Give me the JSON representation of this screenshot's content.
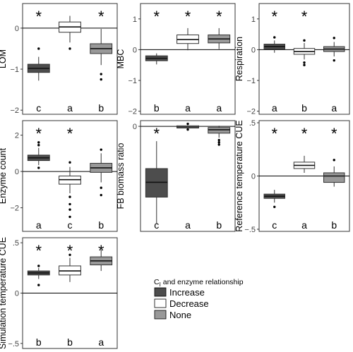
{
  "chart_data": [
    {
      "type": "boxplot",
      "ylabel": "LOM",
      "ylim": [
        -2.1,
        0.6
      ],
      "ticks": [
        -2,
        -1,
        0
      ],
      "tick_labels": [
        "−2",
        "−1",
        "0"
      ],
      "stars": [
        "*",
        "",
        "*"
      ],
      "letters": [
        "c",
        "a",
        "b"
      ],
      "boxes": [
        {
          "group": "Increase",
          "q1": -1.08,
          "median": -0.98,
          "q3": -0.88,
          "wlo": -1.28,
          "whi": -0.7,
          "outliers": [
            -0.5
          ]
        },
        {
          "group": "Decrease",
          "q1": -0.1,
          "median": 0.03,
          "q3": 0.15,
          "wlo": -0.35,
          "whi": 0.3,
          "outliers": [
            -0.5
          ]
        },
        {
          "group": "None",
          "q1": -0.62,
          "median": -0.5,
          "q3": -0.38,
          "wlo": -0.9,
          "whi": -0.02,
          "outliers": [
            -1.12,
            -1.25
          ]
        }
      ]
    },
    {
      "type": "boxplot",
      "ylabel": "MBC",
      "ylim": [
        -2.1,
        1.5
      ],
      "ticks": [
        -2,
        -1,
        0,
        1
      ],
      "tick_labels": [
        "−2",
        "−1",
        "0",
        "1"
      ],
      "stars": [
        "*",
        "*",
        "*"
      ],
      "letters": [
        "b",
        "a",
        "a"
      ],
      "boxes": [
        {
          "group": "Increase",
          "q1": -0.36,
          "median": -0.28,
          "q3": -0.2,
          "wlo": -0.48,
          "whi": -0.12,
          "outliers": []
        },
        {
          "group": "Decrease",
          "q1": 0.2,
          "median": 0.33,
          "q3": 0.48,
          "wlo": -0.02,
          "whi": 0.7,
          "outliers": []
        },
        {
          "group": "None",
          "q1": 0.22,
          "median": 0.35,
          "q3": 0.48,
          "wlo": 0.02,
          "whi": 0.7,
          "outliers": []
        }
      ]
    },
    {
      "type": "boxplot",
      "ylabel": "Respiration",
      "ylim": [
        -2.1,
        1.5
      ],
      "ticks": [
        -2,
        -1,
        0,
        1
      ],
      "tick_labels": [
        "−2",
        "−1",
        "0",
        "1"
      ],
      "stars": [
        "*",
        "*",
        ""
      ],
      "letters": [
        "a",
        "b",
        "a"
      ],
      "boxes": [
        {
          "group": "Increase",
          "q1": 0.02,
          "median": 0.1,
          "q3": 0.18,
          "wlo": -0.1,
          "whi": 0.3,
          "outliers": [
            0.4
          ]
        },
        {
          "group": "Decrease",
          "q1": -0.15,
          "median": -0.06,
          "q3": 0.04,
          "wlo": -0.32,
          "whi": 0.22,
          "outliers": [
            0.3,
            -0.42,
            -0.5
          ]
        },
        {
          "group": "None",
          "q1": -0.06,
          "median": 0.02,
          "q3": 0.1,
          "wlo": -0.22,
          "whi": 0.25,
          "outliers": [
            0.38,
            -0.35
          ]
        }
      ]
    },
    {
      "type": "boxplot",
      "ylabel": "Enzyme count",
      "ylim": [
        -3.3,
        2.8
      ],
      "ticks": [
        -2,
        0,
        2
      ],
      "tick_labels": [
        "−2",
        "0",
        "2"
      ],
      "stars": [
        "*",
        "*",
        ""
      ],
      "letters": [
        "a",
        "c",
        "b"
      ],
      "boxes": [
        {
          "group": "Increase",
          "q1": 0.6,
          "median": 0.75,
          "q3": 0.9,
          "wlo": 0.35,
          "whi": 1.3,
          "outliers": [
            1.45,
            1.6,
            0.2
          ]
        },
        {
          "group": "Decrease",
          "q1": -0.7,
          "median": -0.45,
          "q3": -0.25,
          "wlo": -1.2,
          "whi": 0.25,
          "outliers": [
            0.5,
            -1.4,
            -1.8,
            -2.1,
            -2.5
          ]
        },
        {
          "group": "None",
          "q1": -0.05,
          "median": 0.2,
          "q3": 0.45,
          "wlo": -0.6,
          "whi": 1.0,
          "outliers": [
            1.2,
            -0.9,
            -1.3
          ]
        }
      ]
    },
    {
      "type": "boxplot",
      "ylabel": "FB biomass ratio",
      "ylim": [
        -9.2,
        0.5
      ],
      "ticks": [
        0
      ],
      "tick_labels": [
        "0"
      ],
      "stars": [
        "*",
        "",
        ""
      ],
      "letters": [
        "c",
        "a",
        "b"
      ],
      "boxes": [
        {
          "group": "Increase",
          "q1": -6.2,
          "median": -4.9,
          "q3": -3.7,
          "wlo": -8.5,
          "whi": -1.3,
          "outliers": []
        },
        {
          "group": "Decrease",
          "q1": -0.15,
          "median": -0.05,
          "q3": 0.05,
          "wlo": -0.25,
          "whi": 0.12,
          "outliers": [
            0.22,
            -0.28
          ]
        },
        {
          "group": "None",
          "q1": -0.6,
          "median": -0.3,
          "q3": -0.1,
          "wlo": -1.0,
          "whi": 0.05,
          "outliers": [
            -1.2,
            -1.4,
            -1.6
          ]
        }
      ]
    },
    {
      "type": "boxplot",
      "ylabel": "Reference temperature CUE",
      "ylim": [
        -0.52,
        0.52
      ],
      "ticks": [
        -0.5,
        0,
        0.5
      ],
      "tick_labels": [
        "−.5",
        "0",
        ".5"
      ],
      "stars": [
        "*",
        "*",
        "*"
      ],
      "letters": [
        "c",
        "a",
        "b"
      ],
      "boxes": [
        {
          "group": "Increase",
          "q1": -0.21,
          "median": -0.19,
          "q3": -0.17,
          "wlo": -0.25,
          "whi": -0.13,
          "outliers": [
            -0.29
          ]
        },
        {
          "group": "Decrease",
          "q1": 0.07,
          "median": 0.1,
          "q3": 0.13,
          "wlo": 0.03,
          "whi": 0.19,
          "outliers": []
        },
        {
          "group": "None",
          "q1": -0.06,
          "median": 0.0,
          "q3": 0.03,
          "wlo": -0.1,
          "whi": 0.09,
          "outliers": [
            0.15
          ]
        }
      ]
    },
    {
      "type": "boxplot",
      "ylabel": "Simulation temperature CUE",
      "ylim": [
        -0.55,
        0.55
      ],
      "ticks": [
        -0.5,
        0,
        0.5
      ],
      "tick_labels": [
        "−.5",
        "0",
        ".5"
      ],
      "stars": [
        "*",
        "*",
        "*"
      ],
      "letters": [
        "b",
        "b",
        "a"
      ],
      "boxes": [
        {
          "group": "Increase",
          "q1": 0.18,
          "median": 0.2,
          "q3": 0.22,
          "wlo": 0.14,
          "whi": 0.25,
          "outliers": [
            0.27,
            0.08
          ]
        },
        {
          "group": "Decrease",
          "q1": 0.18,
          "median": 0.22,
          "q3": 0.27,
          "wlo": 0.11,
          "whi": 0.35,
          "outliers": [
            0.38
          ]
        },
        {
          "group": "None",
          "q1": 0.28,
          "median": 0.32,
          "q3": 0.36,
          "wlo": 0.22,
          "whi": 0.43,
          "outliers": []
        }
      ]
    }
  ],
  "legend": {
    "title_main": "C",
    "title_sub": "I",
    "title_rest": " and enzyme relationship",
    "items": [
      {
        "label": "Increase",
        "fill": "#4d4d4d"
      },
      {
        "label": "Decrease",
        "fill": "#ffffff"
      },
      {
        "label": "None",
        "fill": "#999999"
      }
    ]
  },
  "colors": {
    "increase": "#4d4d4d",
    "decrease": "#ffffff",
    "none": "#999999"
  }
}
